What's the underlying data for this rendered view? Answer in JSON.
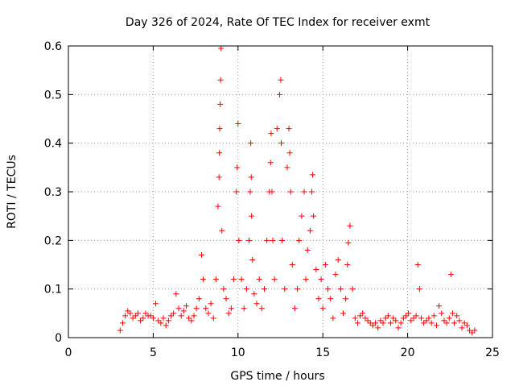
{
  "chart_data": {
    "type": "scatter",
    "title": "Day 326 of 2024, Rate Of TEC Index for receiver exmt",
    "xlabel": "GPS time / hours",
    "ylabel": "ROTI / TECUs",
    "xlim": [
      0,
      25
    ],
    "ylim": [
      0,
      0.6
    ],
    "xticks": [
      0,
      5,
      10,
      15,
      20,
      25
    ],
    "yticks": [
      0,
      0.1,
      0.2,
      0.3,
      0.4,
      0.5,
      0.6
    ],
    "grid": true,
    "legend": "none",
    "marker": "plus",
    "color": "#ff0000",
    "series": [
      {
        "x": [
          3.05,
          3.2,
          3.35,
          3.5,
          3.65,
          3.8,
          3.95,
          4.1,
          4.25,
          4.4,
          4.55,
          4.7,
          4.85,
          5.0,
          5.15,
          5.3,
          5.45,
          5.6,
          5.75,
          5.9,
          6.05,
          6.2,
          6.35,
          6.5,
          6.65,
          6.8,
          6.95,
          7.1,
          7.25,
          7.4,
          7.55,
          7.7,
          7.85,
          7.95,
          8.1,
          8.25,
          8.4,
          8.55,
          8.7,
          8.82,
          8.88,
          8.9,
          8.92,
          8.95,
          8.97,
          9.0,
          9.05,
          9.15,
          9.3,
          9.45,
          9.6,
          9.75,
          9.9,
          9.95,
          10.0,
          10.05,
          10.2,
          10.35,
          10.5,
          10.65,
          10.72,
          10.75,
          10.78,
          10.8,
          10.85,
          10.95,
          11.1,
          11.25,
          11.4,
          11.55,
          11.7,
          11.85,
          11.92,
          11.95,
          12.0,
          12.05,
          12.15,
          12.3,
          12.45,
          12.52,
          12.55,
          12.6,
          12.75,
          12.9,
          13.0,
          13.05,
          13.1,
          13.2,
          13.35,
          13.5,
          13.6,
          13.75,
          13.9,
          14.0,
          14.1,
          14.25,
          14.35,
          14.4,
          14.45,
          14.6,
          14.75,
          14.9,
          15.0,
          15.15,
          15.3,
          15.45,
          15.6,
          15.75,
          15.9,
          16.05,
          16.2,
          16.35,
          16.45,
          16.5,
          16.6,
          16.75,
          16.9,
          17.05,
          17.2,
          17.35,
          17.5,
          17.65,
          17.8,
          17.95,
          18.1,
          18.25,
          18.4,
          18.55,
          18.7,
          18.85,
          19.0,
          19.15,
          19.3,
          19.45,
          19.6,
          19.75,
          19.9,
          20.05,
          20.2,
          20.35,
          20.5,
          20.6,
          20.7,
          20.8,
          20.95,
          21.1,
          21.25,
          21.4,
          21.55,
          21.7,
          21.85,
          22.0,
          22.15,
          22.3,
          22.45,
          22.55,
          22.65,
          22.75,
          22.9,
          23.05,
          23.2,
          23.35,
          23.5,
          23.65,
          23.8,
          23.95
        ],
        "y": [
          0.015,
          0.03,
          0.045,
          0.055,
          0.05,
          0.04,
          0.045,
          0.05,
          0.035,
          0.04,
          0.05,
          0.045,
          0.045,
          0.04,
          0.07,
          0.035,
          0.03,
          0.04,
          0.025,
          0.035,
          0.045,
          0.05,
          0.09,
          0.06,
          0.045,
          0.055,
          0.065,
          0.04,
          0.035,
          0.045,
          0.06,
          0.08,
          0.17,
          0.12,
          0.06,
          0.05,
          0.07,
          0.04,
          0.12,
          0.27,
          0.33,
          0.38,
          0.43,
          0.48,
          0.53,
          0.595,
          0.22,
          0.1,
          0.08,
          0.05,
          0.06,
          0.12,
          0.3,
          0.35,
          0.44,
          0.2,
          0.12,
          0.06,
          0.1,
          0.2,
          0.3,
          0.4,
          0.33,
          0.25,
          0.16,
          0.09,
          0.07,
          0.12,
          0.06,
          0.1,
          0.2,
          0.3,
          0.36,
          0.42,
          0.3,
          0.2,
          0.12,
          0.43,
          0.5,
          0.53,
          0.4,
          0.2,
          0.1,
          0.35,
          0.43,
          0.38,
          0.3,
          0.15,
          0.06,
          0.1,
          0.2,
          0.25,
          0.3,
          0.12,
          0.18,
          0.22,
          0.3,
          0.335,
          0.25,
          0.14,
          0.08,
          0.12,
          0.06,
          0.15,
          0.1,
          0.08,
          0.04,
          0.13,
          0.16,
          0.1,
          0.05,
          0.08,
          0.15,
          0.195,
          0.23,
          0.1,
          0.04,
          0.03,
          0.045,
          0.05,
          0.04,
          0.035,
          0.03,
          0.025,
          0.03,
          0.02,
          0.035,
          0.03,
          0.04,
          0.045,
          0.03,
          0.04,
          0.035,
          0.02,
          0.03,
          0.04,
          0.045,
          0.05,
          0.035,
          0.04,
          0.045,
          0.15,
          0.1,
          0.04,
          0.03,
          0.035,
          0.04,
          0.03,
          0.045,
          0.025,
          0.065,
          0.05,
          0.035,
          0.03,
          0.04,
          0.13,
          0.05,
          0.03,
          0.045,
          0.035,
          0.02,
          0.03,
          0.025,
          0.015,
          0.01,
          0.015
        ]
      }
    ]
  }
}
